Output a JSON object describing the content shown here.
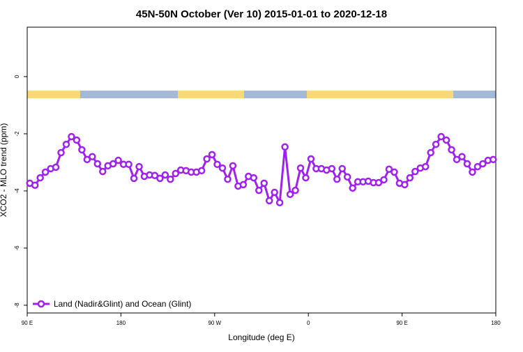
{
  "chart_data": {
    "type": "line",
    "title": "45N-50N October (Ver 10)   2015-01-01 to 2020-12-18",
    "x_label": "Longitude (deg E)",
    "y_label": "XCO2 - MLO trend (ppm)",
    "xlim": [
      90,
      540
    ],
    "ylim": [
      -8.27,
      1.73
    ],
    "xticks": [
      {
        "value": 90,
        "label": "90 E"
      },
      {
        "value": 180,
        "label": "180"
      },
      {
        "value": 270,
        "label": "90 W"
      },
      {
        "value": 360,
        "label": "0"
      },
      {
        "value": 450,
        "label": "90 E"
      },
      {
        "value": 540,
        "label": "180"
      }
    ],
    "yticks": [
      0,
      -2,
      -4,
      -6,
      -8
    ],
    "legend": "bottom-left",
    "x": [
      92.5,
      97.5,
      102.5,
      107.5,
      112.5,
      117.5,
      122.5,
      127.5,
      132.5,
      137.5,
      142.5,
      147.5,
      152.5,
      157.5,
      162.5,
      167.5,
      172.5,
      177.5,
      182.5,
      187.5,
      192.5,
      197.5,
      202.5,
      207.5,
      212.5,
      217.5,
      222.5,
      227.5,
      232.5,
      237.5,
      242.5,
      247.5,
      252.5,
      257.5,
      262.5,
      267.5,
      272.5,
      277.5,
      282.5,
      287.5,
      292.5,
      297.5,
      302.5,
      307.5,
      312.5,
      317.5,
      322.5,
      327.5,
      332.5,
      337.5,
      342.5,
      347.5,
      352.5,
      357.5,
      362.5,
      367.5,
      372.5,
      377.5,
      382.5,
      387.5,
      392.5,
      397.5,
      402.5,
      407.5,
      412.5,
      417.5,
      422.5,
      427.5,
      432.5,
      437.5,
      442.5,
      447.5,
      452.5,
      457.5,
      462.5,
      467.5,
      472.5,
      477.5,
      482.5,
      487.5,
      492.5,
      497.5,
      502.5,
      507.5,
      512.5,
      517.5,
      522.5,
      527.5,
      532.5,
      537.5
    ],
    "series": [
      {
        "name": "Land (Nadir&Glint) and Ocean (Glint)",
        "color": "#a020f0",
        "values": [
          -3.73,
          -3.8,
          -3.54,
          -3.34,
          -3.22,
          -3.17,
          -2.66,
          -2.37,
          -2.1,
          -2.22,
          -2.56,
          -2.9,
          -2.8,
          -3.05,
          -3.32,
          -3.12,
          -3.05,
          -2.93,
          -3.07,
          -3.07,
          -3.56,
          -3.15,
          -3.49,
          -3.44,
          -3.46,
          -3.56,
          -3.44,
          -3.59,
          -3.39,
          -3.27,
          -3.29,
          -3.34,
          -3.34,
          -3.29,
          -2.88,
          -2.73,
          -3.07,
          -3.2,
          -3.59,
          -3.12,
          -3.83,
          -3.78,
          -3.49,
          -3.54,
          -3.98,
          -3.73,
          -4.34,
          -4.05,
          -4.41,
          -2.46,
          -4.12,
          -3.98,
          -3.2,
          -3.54,
          -2.88,
          -3.22,
          -3.22,
          -3.27,
          -3.22,
          -3.59,
          -3.22,
          -3.51,
          -3.9,
          -3.68,
          -3.68,
          -3.66,
          -3.71,
          -3.71,
          -3.61,
          -3.24,
          -3.34,
          -3.73,
          -3.78,
          -3.54,
          -3.32,
          -3.2,
          -3.15,
          -2.66,
          -2.37,
          -2.1,
          -2.22,
          -2.56,
          -2.9,
          -2.8,
          -3.05,
          -3.34,
          -3.15,
          -3.05,
          -2.93,
          -2.9
        ]
      }
    ]
  }
}
